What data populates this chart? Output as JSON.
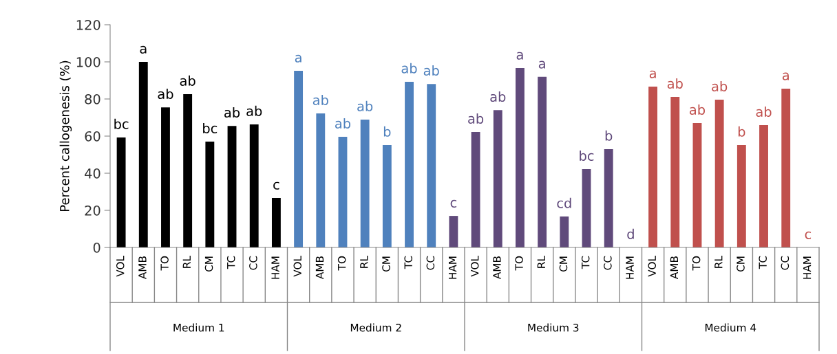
{
  "chart_data": {
    "type": "bar",
    "ylabel": "Percent callogenesis (%)",
    "categories": [
      "VOL",
      "AMB",
      "TO",
      "RL",
      "CM",
      "TC",
      "CC",
      "HAM",
      "VOL",
      "AMB",
      "TO",
      "RL",
      "CM",
      "TC",
      "CC",
      "HAM",
      "VOL",
      "AMB",
      "TO",
      "RL",
      "CM",
      "TC",
      "CC",
      "HAM",
      "VOL",
      "AMB",
      "TO",
      "RL",
      "CM",
      "TC",
      "CC",
      "HAM"
    ],
    "values": [
      59.3,
      100,
      75.5,
      82.6,
      57,
      65.5,
      66.3,
      26.7,
      95.2,
      72.2,
      59.6,
      68.9,
      55.2,
      89.3,
      88.1,
      17,
      62.2,
      74,
      96.7,
      91.9,
      16.7,
      42.2,
      53,
      0,
      86.7,
      81.1,
      67,
      79.6,
      55.2,
      65.9,
      85.6,
      0
    ],
    "colors": [
      "#000000",
      "#000000",
      "#000000",
      "#000000",
      "#000000",
      "#000000",
      "#000000",
      "#000000",
      "#4f81bd",
      "#4f81bd",
      "#4f81bd",
      "#4f81bd",
      "#4f81bd",
      "#4f81bd",
      "#4f81bd",
      "#604a7b",
      "#604a7b",
      "#604a7b",
      "#604a7b",
      "#604a7b",
      "#604a7b",
      "#604a7b",
      "#604a7b",
      "#604a7b",
      "#c0504d",
      "#c0504d",
      "#c0504d",
      "#c0504d",
      "#c0504d",
      "#c0504d",
      "#c0504d",
      "#c0504d"
    ],
    "value_labels": [
      "bc",
      "a",
      "ab",
      "ab",
      "bc",
      "ab",
      "ab",
      "c",
      "a",
      "ab",
      "ab",
      "ab",
      "b",
      "ab",
      "ab",
      "c",
      "ab",
      "ab",
      "a",
      "a",
      "cd",
      "bc",
      "b",
      "d",
      "a",
      "ab",
      "ab",
      "ab",
      "b",
      "ab",
      "a",
      "c"
    ],
    "annotations": [
      "Medium 1",
      "Medium 2",
      "Medium 3",
      "Medium 4"
    ],
    "ylim": [
      0,
      120
    ],
    "yticks": [
      0,
      20,
      40,
      60,
      80,
      100,
      120
    ],
    "grid": false,
    "legend": false
  }
}
